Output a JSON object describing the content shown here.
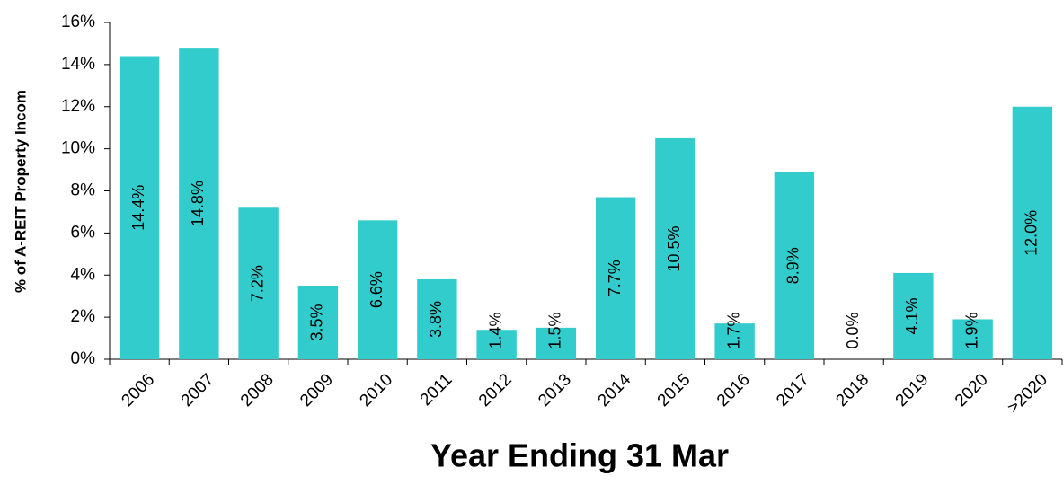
{
  "chart_data": {
    "type": "bar",
    "x_label": "Year Ending 31 Mar",
    "y_label": "% of A-REIT Property Incom",
    "categories": [
      "2006",
      "2007",
      "2008",
      "2009",
      "2010",
      "2011",
      "2012",
      "2013",
      "2014",
      "2015",
      "2016",
      "2017",
      "2018",
      "2019",
      "2020",
      ">2020"
    ],
    "values": [
      14.4,
      14.8,
      7.2,
      3.5,
      6.6,
      3.8,
      1.4,
      1.5,
      7.7,
      10.5,
      1.7,
      8.9,
      0.0,
      4.1,
      1.9,
      12.0
    ],
    "value_labels": [
      "14.4%",
      "14.8%",
      "7.2%",
      "3.5%",
      "6.6%",
      "3.8%",
      "1.4%",
      "1.5%",
      "7.7%",
      "10.5%",
      "1.7%",
      "8.9%",
      "0.0%",
      "4.1%",
      "1.9%",
      "12.0%"
    ],
    "color": "#33cccc",
    "ylim": [
      0,
      16
    ],
    "yticks": [
      {
        "value": 0,
        "label": "0%"
      },
      {
        "value": 2,
        "label": "2%"
      },
      {
        "value": 4,
        "label": "4%"
      },
      {
        "value": 6,
        "label": "6%"
      },
      {
        "value": 8,
        "label": "8%"
      },
      {
        "value": 10,
        "label": "10%"
      },
      {
        "value": 12,
        "label": "12%"
      },
      {
        "value": 14,
        "label": "14%"
      },
      {
        "value": 16,
        "label": "16%"
      }
    ],
    "grid": false
  }
}
